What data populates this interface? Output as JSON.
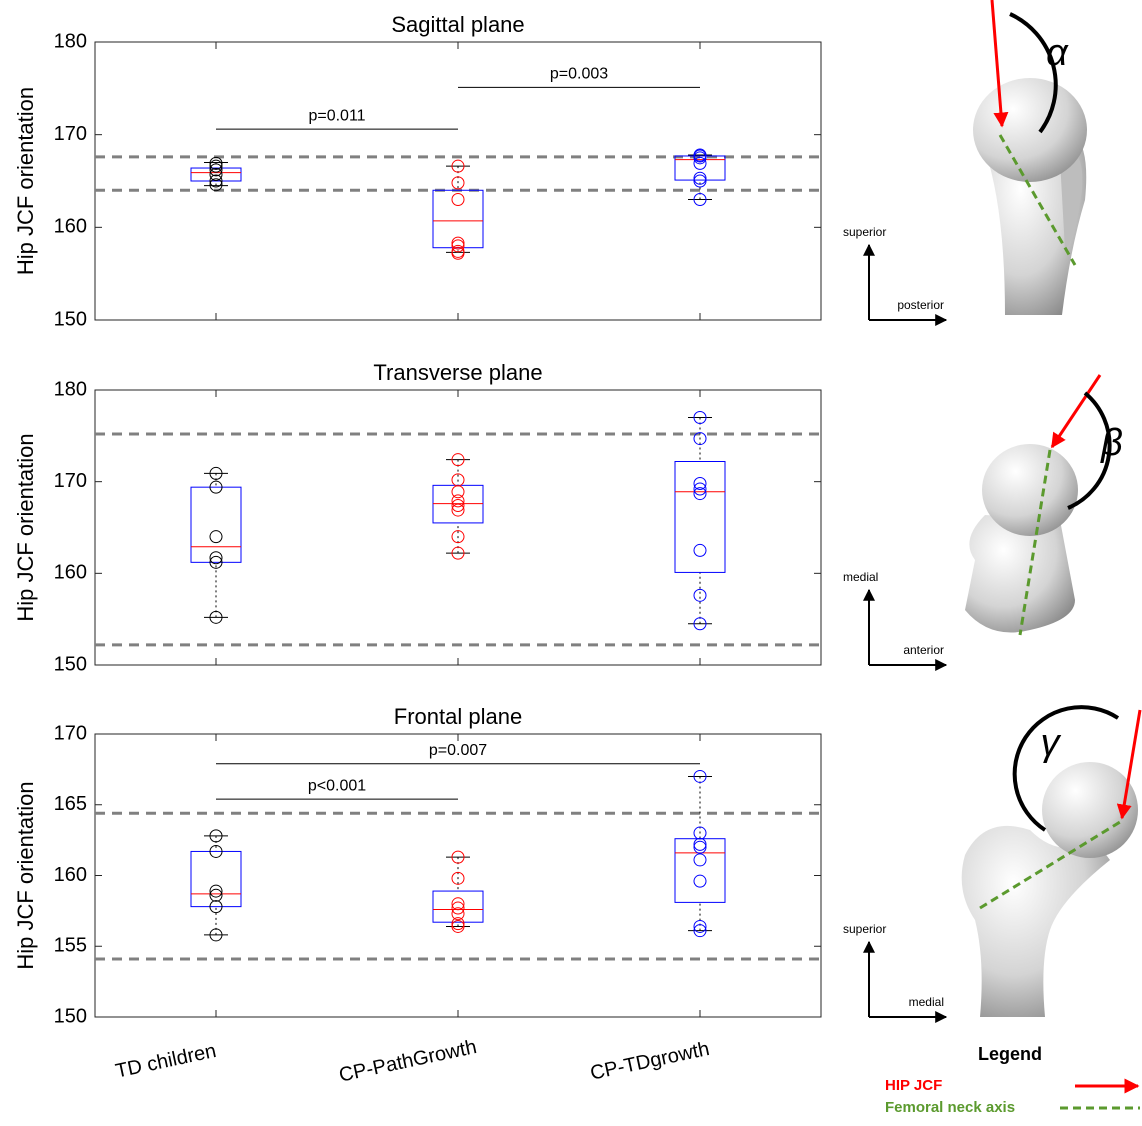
{
  "chart_data": [
    {
      "type": "box",
      "title": "Sagittal plane",
      "y_label": "Hip JCF orientation",
      "ylim": [
        150,
        180
      ],
      "yticks": [
        150,
        160,
        170,
        180
      ],
      "box_color": "#0000ff",
      "median_color": "#ff0000",
      "ref_color": "#808080",
      "ref_lines": [
        167.6,
        164.0
      ],
      "boxes": [
        {
          "low": 164.5,
          "q1": 165.0,
          "median": 165.9,
          "q3": 166.4,
          "high": 167.0,
          "point_color": "#000000",
          "points": [
            164.6,
            165.0,
            165.7,
            166.2,
            166.6,
            166.9
          ]
        },
        {
          "low": 157.3,
          "q1": 157.8,
          "median": 160.7,
          "q3": 164.0,
          "high": 166.6,
          "point_color": "#ff0000",
          "points": [
            157.2,
            157.4,
            158.0,
            158.3,
            163.0,
            164.8,
            166.6
          ]
        },
        {
          "low": 163.0,
          "q1": 165.1,
          "median": 167.3,
          "q3": 167.7,
          "high": 167.8,
          "point_color": "#0000ff",
          "points": [
            163.0,
            165.0,
            165.3,
            166.9,
            167.5,
            167.7,
            167.8
          ]
        }
      ],
      "annotations": [
        {
          "text": "p=0.011",
          "from": 0,
          "to": 1,
          "y": 170.6
        },
        {
          "text": "p=0.003",
          "from": 1,
          "to": 2,
          "y": 175.1
        }
      ]
    },
    {
      "type": "box",
      "title": "Transverse plane",
      "y_label": "Hip JCF orientation",
      "ylim": [
        150,
        180
      ],
      "yticks": [
        150,
        160,
        170,
        180
      ],
      "box_color": "#0000ff",
      "median_color": "#ff0000",
      "ref_color": "#808080",
      "ref_lines": [
        175.2,
        152.2
      ],
      "boxes": [
        {
          "low": 155.2,
          "q1": 161.2,
          "median": 162.9,
          "q3": 169.4,
          "high": 170.9,
          "point_color": "#000000",
          "points": [
            155.2,
            161.2,
            161.7,
            164.0,
            169.4,
            170.9
          ]
        },
        {
          "low": 162.2,
          "q1": 165.5,
          "median": 167.6,
          "q3": 169.6,
          "high": 172.4,
          "point_color": "#ff0000",
          "points": [
            162.2,
            164.0,
            166.9,
            167.4,
            167.9,
            168.9,
            170.2,
            172.4
          ]
        },
        {
          "low": 154.5,
          "q1": 160.1,
          "median": 168.9,
          "q3": 172.2,
          "high": 177.0,
          "point_color": "#0000ff",
          "points": [
            154.5,
            157.6,
            162.5,
            168.7,
            169.2,
            169.8,
            174.7,
            177.0
          ]
        }
      ],
      "annotations": []
    },
    {
      "type": "box",
      "title": "Frontal plane",
      "y_label": "Hip JCF orientation",
      "categories": [
        "TD children",
        "CP-PathGrowth",
        "CP-TDgrowth"
      ],
      "ylim": [
        150,
        170
      ],
      "yticks": [
        150,
        155,
        160,
        165,
        170
      ],
      "box_color": "#0000ff",
      "median_color": "#ff0000",
      "ref_color": "#808080",
      "ref_lines": [
        164.4,
        154.1
      ],
      "boxes": [
        {
          "low": 155.8,
          "q1": 157.8,
          "median": 158.7,
          "q3": 161.7,
          "high": 162.8,
          "point_color": "#000000",
          "points": [
            155.8,
            157.8,
            158.6,
            158.9,
            161.7,
            162.8
          ]
        },
        {
          "low": 156.4,
          "q1": 156.7,
          "median": 157.6,
          "q3": 158.9,
          "high": 161.3,
          "point_color": "#ff0000",
          "points": [
            156.4,
            156.6,
            157.3,
            157.7,
            158.0,
            159.8,
            161.3
          ]
        },
        {
          "low": 156.1,
          "q1": 158.1,
          "median": 161.6,
          "q3": 162.6,
          "high": 167.0,
          "point_color": "#0000ff",
          "points": [
            156.1,
            156.4,
            159.6,
            161.1,
            162.0,
            162.2,
            163.0,
            167.0
          ]
        }
      ],
      "annotations": [
        {
          "text": "p<0.001",
          "from": 0,
          "to": 1,
          "y": 165.4
        },
        {
          "text": "p=0.007",
          "from": 0,
          "to": 2,
          "y": 167.9
        }
      ]
    }
  ],
  "illustrations": [
    {
      "up": "superior",
      "right": "posterior",
      "angle": "α"
    },
    {
      "up": "medial",
      "right": "anterior",
      "angle": "β"
    },
    {
      "up": "superior",
      "right": "medial",
      "angle": "γ"
    }
  ],
  "legend": {
    "title": "Legend",
    "items": [
      {
        "label": "HIP JCF",
        "color": "#ff0000"
      },
      {
        "label": "Femoral neck axis",
        "color": "#5b9a2e"
      }
    ]
  }
}
